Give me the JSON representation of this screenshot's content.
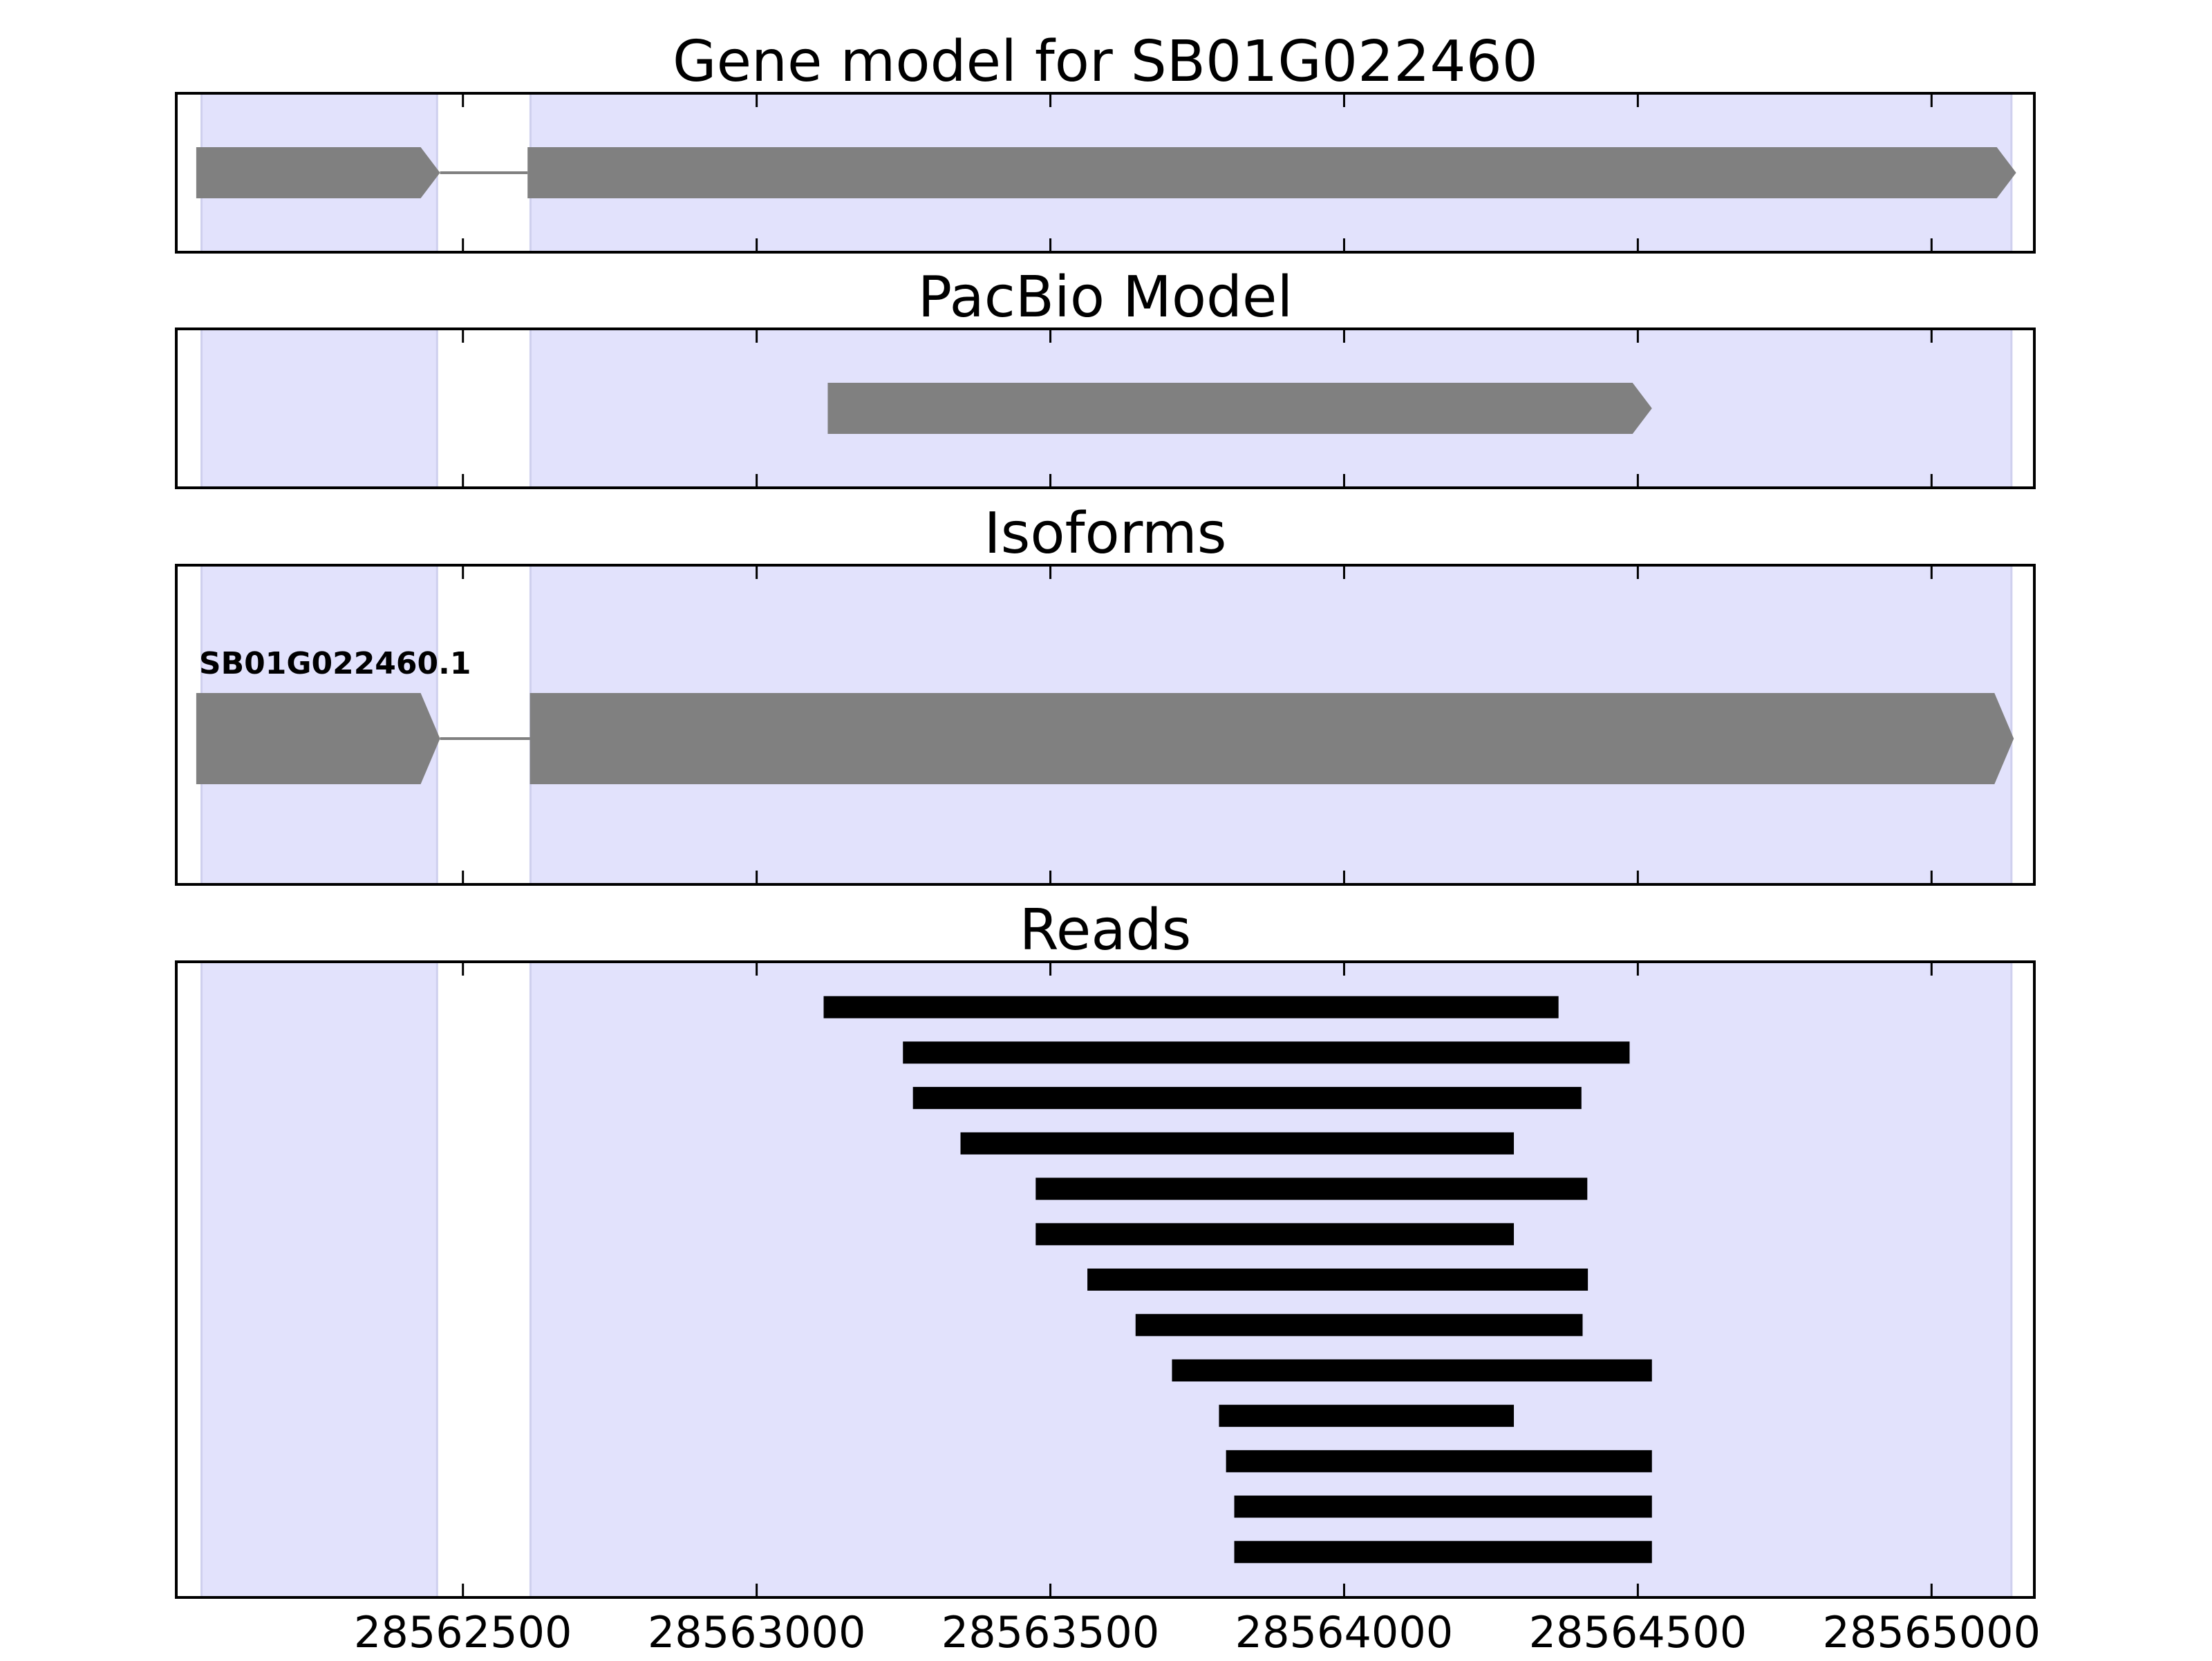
{
  "chart_data": [
    {
      "type": "gene-model",
      "title": "Gene model for SB01G022460",
      "xlim": [
        28562012,
        28565175
      ],
      "xticks": [
        28562500,
        28563000,
        28563500,
        28564000,
        28564500,
        28565000
      ],
      "shaded": [
        [
          28562055,
          28562456
        ],
        [
          28562615,
          28565136
        ]
      ],
      "shade_color": "#e2e2fc",
      "exons": [
        [
          28562046,
          28562461
        ],
        [
          28562610,
          28565144
        ]
      ],
      "color": "#808080"
    },
    {
      "type": "gene-model",
      "title": "PacBio Model",
      "xlim": [
        28562012,
        28565175
      ],
      "xticks": [
        28562500,
        28563000,
        28563500,
        28564000,
        28564500,
        28565000
      ],
      "shaded": [
        [
          28562055,
          28562456
        ],
        [
          28562615,
          28565136
        ]
      ],
      "shade_color": "#e2e2fc",
      "exons": [
        [
          28563121,
          28564524
        ]
      ],
      "color": "#808080"
    },
    {
      "type": "gene-model",
      "title": "Isoforms",
      "label": "SB01G022460.1",
      "xlim": [
        28562012,
        28565175
      ],
      "xticks": [
        28562500,
        28563000,
        28563500,
        28564000,
        28564500,
        28565000
      ],
      "shaded": [
        [
          28562055,
          28562456
        ],
        [
          28562615,
          28565136
        ]
      ],
      "shade_color": "#e2e2fc",
      "exons": [
        [
          28562046,
          28562461
        ],
        [
          28562614,
          28565140
        ]
      ],
      "color": "#808080"
    },
    {
      "type": "reads",
      "title": "Reads",
      "xlim": [
        28562012,
        28565175
      ],
      "xticks": [
        28562500,
        28563000,
        28563500,
        28564000,
        28564500,
        28565000
      ],
      "shaded": [
        [
          28562055,
          28562456
        ],
        [
          28562615,
          28565136
        ]
      ],
      "shade_color": "#e2e2fc",
      "reads": [
        [
          28563114,
          28564365
        ],
        [
          28563249,
          28564486
        ],
        [
          28563266,
          28564404
        ],
        [
          28563347,
          28564289
        ],
        [
          28563475,
          28564414
        ],
        [
          28563475,
          28564289
        ],
        [
          28563563,
          28564415
        ],
        [
          28563645,
          28564406
        ],
        [
          28563707,
          28564524
        ],
        [
          28563787,
          28564289
        ],
        [
          28563799,
          28564524
        ],
        [
          28563813,
          28564524
        ],
        [
          28563813,
          28564524
        ]
      ],
      "color": "#000000"
    }
  ]
}
